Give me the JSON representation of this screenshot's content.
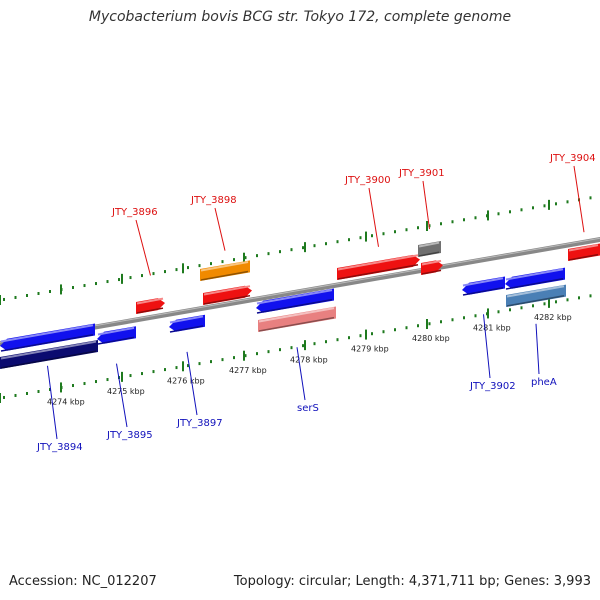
{
  "title": "Mycobacterium bovis BCG str. Tokyo 172, complete genome",
  "footer": {
    "accession": "Accession: NC_012207",
    "summary": "Topology: circular; Length: 4,371,711 bp; Genes: 3,993"
  },
  "colors": {
    "forward_gene": "#ee1111",
    "reverse_gene": "#1111ee",
    "highlight_orange": "#f08a00",
    "dark_reverse": "#0b0b70",
    "gray_feature": "#707070",
    "pink_feature": "#e88080",
    "steel_feature": "#4a7fb5",
    "backbone": "#888888",
    "ruler_green": "#1e7a1e",
    "label_forward": "#dd1111",
    "label_reverse": "#1111bb"
  },
  "ticks": [
    "4274 kbp",
    "4275 kbp",
    "4276 kbp",
    "4277 kbp",
    "4278 kbp",
    "4279 kbp",
    "4280 kbp",
    "4281 kbp",
    "4282 kbp"
  ],
  "labels_top": [
    {
      "text": "JTY_3896",
      "gene": "f1"
    },
    {
      "text": "JTY_3898",
      "gene": "f3"
    },
    {
      "text": "JTY_3900",
      "gene": "f4"
    },
    {
      "text": "JTY_3901",
      "gene": "g1"
    },
    {
      "text": "JTY_3904",
      "gene": "f6"
    }
  ],
  "labels_bottom": [
    {
      "text": "JTY_3894",
      "gene": "r1"
    },
    {
      "text": "JTY_3895",
      "gene": "r2"
    },
    {
      "text": "JTY_3897",
      "gene": "r3"
    },
    {
      "text": "serS",
      "gene": "p1"
    },
    {
      "text": "JTY_3902",
      "gene": "r5"
    },
    {
      "text": "pheA",
      "gene": "s1"
    }
  ]
}
